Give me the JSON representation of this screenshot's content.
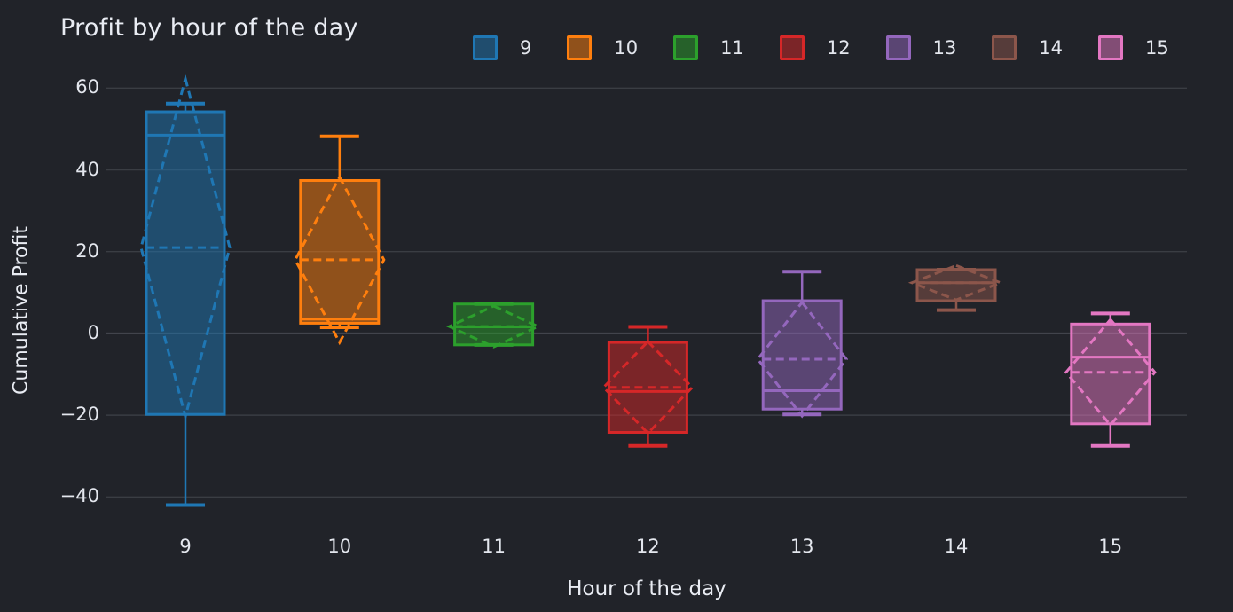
{
  "colors": {
    "background": "#212329",
    "grid": "#3a3d43",
    "zeroline": "#474a51",
    "text": "#e9ecf3",
    "tick_text": "#e4e7ee"
  },
  "chart_data": {
    "type": "box",
    "title": "Profit by hour of the day",
    "xlabel": "Hour of the day",
    "ylabel": "Cumulative Profit",
    "ylim": [
      -46,
      63.1
    ],
    "grid": true,
    "legend_position": "top",
    "boxmean": "sd",
    "yticks": [
      {
        "label": "60",
        "value": 60
      },
      {
        "label": "40",
        "value": 40
      },
      {
        "label": "20",
        "value": 20
      },
      {
        "label": "0",
        "value": 0
      },
      {
        "label": "−20",
        "value": -20
      },
      {
        "label": "−40",
        "value": -40
      }
    ],
    "categories": [
      "9",
      "10",
      "11",
      "12",
      "13",
      "14",
      "15"
    ],
    "series": [
      {
        "name": "9",
        "color": "#1f77b4",
        "min": -42,
        "q1": -19.8,
        "median": 48.5,
        "mean": 21,
        "q3": 54.2,
        "max": 56.2,
        "sd": 41.3
      },
      {
        "name": "10",
        "color": "#ff7f0e",
        "min": 1.5,
        "q1": 2.5,
        "median": 3.5,
        "mean": 18,
        "q3": 37.4,
        "max": 48.2,
        "sd": 20.2
      },
      {
        "name": "11",
        "color": "#2ca02c",
        "min": -2.8,
        "q1": -2.8,
        "median": 1.6,
        "mean": 1.7,
        "q3": 7.2,
        "max": 7.2,
        "sd": 5
      },
      {
        "name": "12",
        "color": "#d62728",
        "min": -27.5,
        "q1": -24.2,
        "median": -14.2,
        "mean": -13.2,
        "q3": -2.2,
        "max": 1.6,
        "sd": 11.2
      },
      {
        "name": "13",
        "color": "#9467bd",
        "min": -19.8,
        "q1": -18.5,
        "median": -14,
        "mean": -6.3,
        "q3": 8,
        "max": 15.1,
        "sd": 13.9
      },
      {
        "name": "14",
        "color": "#8c564b",
        "min": 5.7,
        "q1": 8,
        "median": 12.4,
        "mean": 12.4,
        "q3": 15.6,
        "max": 15.6,
        "sd": 4.2
      },
      {
        "name": "15",
        "color": "#e377c2",
        "min": -27.5,
        "q1": -22.1,
        "median": -5.8,
        "mean": -9.5,
        "q3": 2.3,
        "max": 4.9,
        "sd": 12.9
      }
    ]
  }
}
